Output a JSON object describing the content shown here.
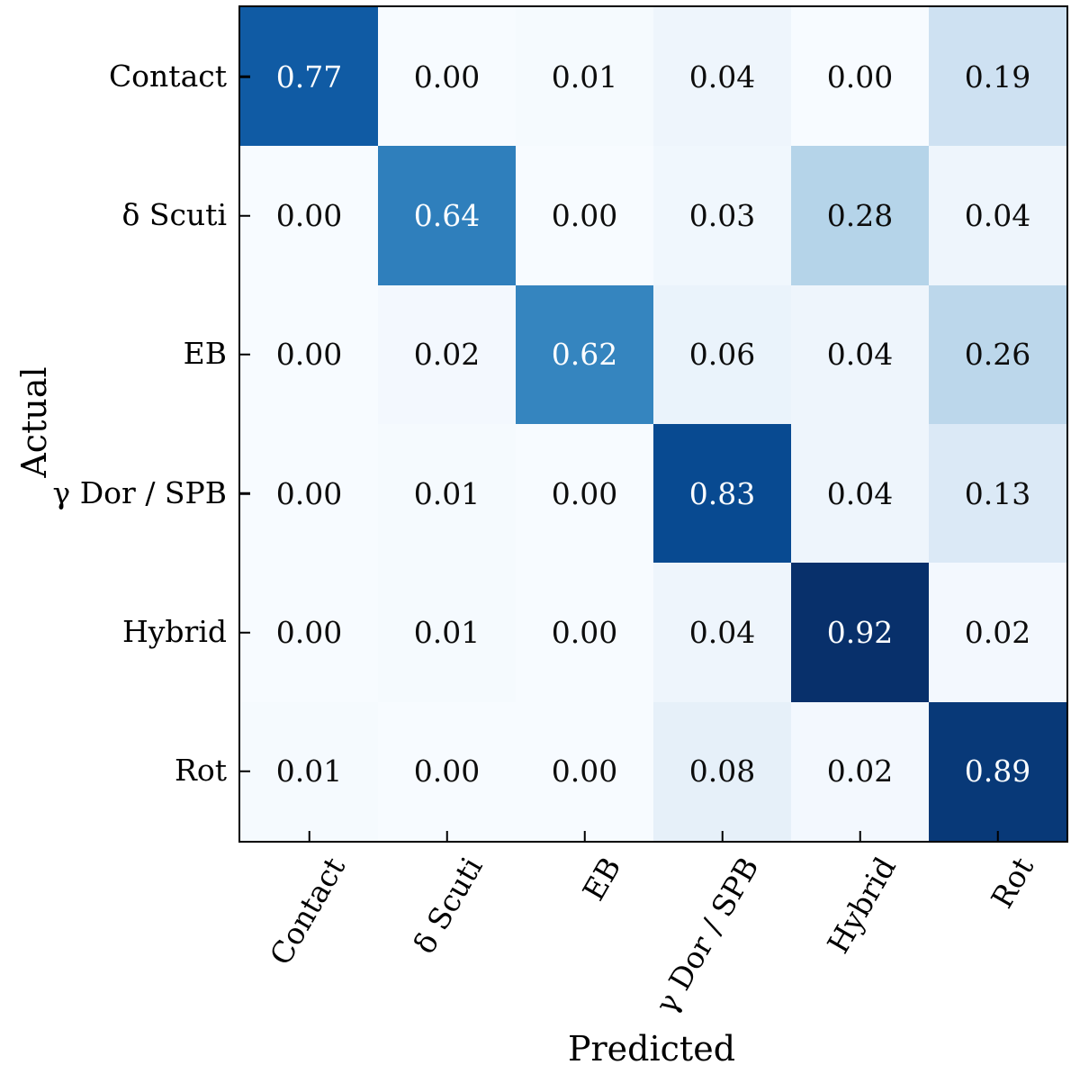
{
  "chart_data": {
    "type": "heatmap",
    "subtype": "confusion-matrix",
    "xlabel": "Predicted",
    "ylabel": "Actual",
    "categories": [
      "Contact",
      "δ Scuti",
      "EB",
      "γ Dor / SPB",
      "Hybrid",
      "Rot"
    ],
    "matrix": [
      [
        0.77,
        0.0,
        0.01,
        0.04,
        0.0,
        0.19
      ],
      [
        0.0,
        0.64,
        0.0,
        0.03,
        0.28,
        0.04
      ],
      [
        0.0,
        0.02,
        0.62,
        0.06,
        0.04,
        0.26
      ],
      [
        0.0,
        0.01,
        0.0,
        0.83,
        0.04,
        0.13
      ],
      [
        0.0,
        0.01,
        0.0,
        0.04,
        0.92,
        0.02
      ],
      [
        0.01,
        0.0,
        0.0,
        0.08,
        0.02,
        0.89
      ]
    ],
    "value_decimals": 2,
    "vmin": 0.0,
    "vmax": 0.92,
    "grid": false,
    "legend": "none",
    "colormap_name": "Blues",
    "colormap_stops": [
      [
        0.0,
        "#f7fbff"
      ],
      [
        0.125,
        "#deebf7"
      ],
      [
        0.25,
        "#c6dbef"
      ],
      [
        0.375,
        "#9ecae1"
      ],
      [
        0.5,
        "#6baed6"
      ],
      [
        0.625,
        "#4292c6"
      ],
      [
        0.75,
        "#2171b5"
      ],
      [
        0.875,
        "#08519c"
      ],
      [
        1.0,
        "#08306b"
      ]
    ],
    "colors": {
      "cell_text_dark": "#0d0d0d",
      "cell_text_light": "#fbfdff",
      "spine": "#000000",
      "background": "#ffffff"
    },
    "light_text_threshold": 0.5
  }
}
